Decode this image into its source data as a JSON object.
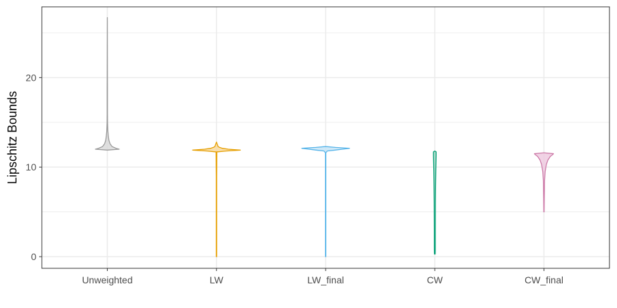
{
  "chart_data": {
    "type": "violin",
    "title": "",
    "xlabel": "",
    "ylabel": "Lipschitz Bounds",
    "ylim": [
      -1.3,
      27.9
    ],
    "yticks": [
      0,
      10,
      20
    ],
    "grid": true,
    "legend": "none",
    "categories": [
      "Unweighted",
      "LW",
      "LW_final",
      "CW",
      "CW_final"
    ],
    "series": [
      {
        "category": "Unweighted",
        "color": "#999999",
        "fill": "#d9d9d9",
        "min": 11.9,
        "max": 26.7,
        "profile": [
          [
            11.9,
            0.0
          ],
          [
            12.0,
            0.3
          ],
          [
            12.1,
            0.22
          ],
          [
            12.3,
            0.12
          ],
          [
            12.6,
            0.07
          ],
          [
            13.0,
            0.04
          ],
          [
            13.5,
            0.025
          ],
          [
            14.0,
            0.015
          ],
          [
            14.5,
            0.01
          ],
          [
            15.0,
            0.006
          ],
          [
            16.0,
            0.004
          ],
          [
            19.0,
            0.004
          ],
          [
            20.0,
            0.003
          ],
          [
            22.0,
            0.002
          ],
          [
            26.7,
            0.0
          ]
        ]
      },
      {
        "category": "LW",
        "color": "#E69F00",
        "fill": "#f7d9a0",
        "min": 0.0,
        "max": 12.8,
        "profile": [
          [
            0.0,
            0.005
          ],
          [
            9.0,
            0.005
          ],
          [
            10.3,
            0.008
          ],
          [
            10.5,
            0.008
          ],
          [
            11.7,
            0.01
          ],
          [
            11.8,
            0.25
          ],
          [
            11.9,
            0.6
          ],
          [
            12.0,
            0.3
          ],
          [
            12.1,
            0.15
          ],
          [
            12.2,
            0.08
          ],
          [
            12.3,
            0.04
          ],
          [
            12.5,
            0.025
          ],
          [
            12.8,
            0.0
          ]
        ]
      },
      {
        "category": "LW_final",
        "color": "#56B4E9",
        "fill": "#c7e5f7",
        "min": 0.0,
        "max": 12.3,
        "profile": [
          [
            0.0,
            0.005
          ],
          [
            11.6,
            0.005
          ],
          [
            11.8,
            0.04
          ],
          [
            11.9,
            0.24
          ],
          [
            12.0,
            0.42
          ],
          [
            12.1,
            0.6
          ],
          [
            12.2,
            0.25
          ],
          [
            12.3,
            0.0
          ]
        ]
      },
      {
        "category": "CW",
        "color": "#009E73",
        "fill": "#9fd7c4",
        "min": 0.3,
        "max": 11.8,
        "profile": [
          [
            0.3,
            0.01
          ],
          [
            1.0,
            0.012
          ],
          [
            3.0,
            0.012
          ],
          [
            6.0,
            0.015
          ],
          [
            8.0,
            0.02
          ],
          [
            9.5,
            0.025
          ],
          [
            10.5,
            0.03
          ],
          [
            11.3,
            0.034
          ],
          [
            11.7,
            0.034
          ],
          [
            11.8,
            0.0
          ]
        ]
      },
      {
        "category": "CW_final",
        "color": "#CC79A7",
        "fill": "#eecbe0",
        "min": 5.0,
        "max": 11.6,
        "profile": [
          [
            5.0,
            0.004
          ],
          [
            6.5,
            0.008
          ],
          [
            7.5,
            0.012
          ],
          [
            8.5,
            0.015
          ],
          [
            9.5,
            0.03
          ],
          [
            10.3,
            0.06
          ],
          [
            10.8,
            0.1
          ],
          [
            11.2,
            0.16
          ],
          [
            11.4,
            0.22
          ],
          [
            11.5,
            0.24
          ],
          [
            11.6,
            0.0
          ]
        ]
      }
    ]
  }
}
